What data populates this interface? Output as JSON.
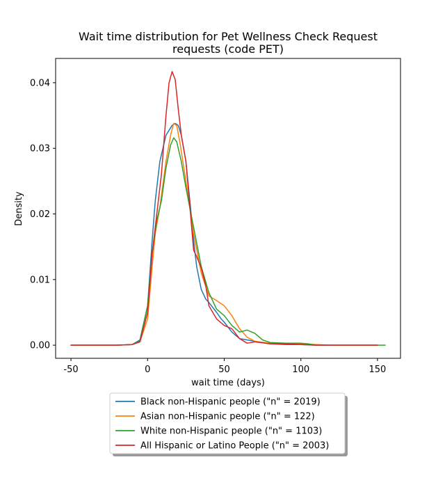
{
  "chart_data": {
    "type": "line",
    "title_lines": [
      "Wait time distribution  for Pet Wellness Check Request",
      "requests (code PET)"
    ],
    "xlabel": "wait time (days)",
    "ylabel": "Density",
    "xlim": [
      -60,
      165
    ],
    "ylim": [
      -0.002,
      0.0437
    ],
    "xticks": [
      -50,
      0,
      50,
      100,
      150
    ],
    "yticks": [
      0.0,
      0.01,
      0.02,
      0.03,
      0.04
    ],
    "ytick_labels": [
      "0.00",
      "0.01",
      "0.02",
      "0.03",
      "0.04"
    ],
    "grid": false,
    "legend_position": "below-center",
    "series": [
      {
        "name": "Black non-Hispanic people (\"n\" = 2019)",
        "color": "#1f77b4",
        "points": [
          [
            -50,
            0
          ],
          [
            -20,
            0
          ],
          [
            -10,
            0.0001
          ],
          [
            -5,
            0.0008
          ],
          [
            0,
            0.006
          ],
          [
            3,
            0.016
          ],
          [
            5,
            0.022
          ],
          [
            8,
            0.028
          ],
          [
            12,
            0.032
          ],
          [
            16,
            0.0335
          ],
          [
            18,
            0.0338
          ],
          [
            20,
            0.0335
          ],
          [
            22,
            0.032
          ],
          [
            25,
            0.028
          ],
          [
            28,
            0.021
          ],
          [
            30,
            0.016
          ],
          [
            32,
            0.012
          ],
          [
            35,
            0.0085
          ],
          [
            38,
            0.007
          ],
          [
            40,
            0.0065
          ],
          [
            45,
            0.005
          ],
          [
            48,
            0.004
          ],
          [
            50,
            0.0035
          ],
          [
            55,
            0.002
          ],
          [
            60,
            0.001
          ],
          [
            65,
            0.0008
          ],
          [
            70,
            0.0006
          ],
          [
            80,
            0.0002
          ],
          [
            90,
            0.0001
          ],
          [
            100,
            0.0001
          ],
          [
            110,
            0
          ],
          [
            150,
            0
          ]
        ]
      },
      {
        "name": "Asian non-Hispanic people (\"n\" = 122)",
        "color": "#ff7f0e",
        "points": [
          [
            -50,
            0
          ],
          [
            -20,
            0
          ],
          [
            -10,
            0.0001
          ],
          [
            -5,
            0.0005
          ],
          [
            0,
            0.004
          ],
          [
            3,
            0.012
          ],
          [
            5,
            0.017
          ],
          [
            8,
            0.021
          ],
          [
            12,
            0.028
          ],
          [
            15,
            0.032
          ],
          [
            17,
            0.0338
          ],
          [
            19,
            0.0335
          ],
          [
            21,
            0.031
          ],
          [
            25,
            0.025
          ],
          [
            30,
            0.017
          ],
          [
            35,
            0.011
          ],
          [
            40,
            0.0075
          ],
          [
            45,
            0.0068
          ],
          [
            50,
            0.006
          ],
          [
            55,
            0.0045
          ],
          [
            60,
            0.0025
          ],
          [
            65,
            0.0012
          ],
          [
            70,
            0.0006
          ],
          [
            80,
            0.0003
          ],
          [
            90,
            0.0002
          ],
          [
            100,
            0.0002
          ],
          [
            110,
            0.0001
          ],
          [
            120,
            0
          ],
          [
            150,
            0
          ]
        ]
      },
      {
        "name": "White non-Hispanic people (\"n\" = 1103)",
        "color": "#2ca02c",
        "points": [
          [
            -50,
            0
          ],
          [
            -20,
            0
          ],
          [
            -10,
            0.0001
          ],
          [
            -5,
            0.0006
          ],
          [
            0,
            0.006
          ],
          [
            3,
            0.014
          ],
          [
            6,
            0.019
          ],
          [
            9,
            0.022
          ],
          [
            12,
            0.027
          ],
          [
            15,
            0.0305
          ],
          [
            17,
            0.0316
          ],
          [
            19,
            0.031
          ],
          [
            22,
            0.028
          ],
          [
            25,
            0.024
          ],
          [
            30,
            0.018
          ],
          [
            35,
            0.012
          ],
          [
            40,
            0.008
          ],
          [
            45,
            0.0055
          ],
          [
            50,
            0.0045
          ],
          [
            55,
            0.003
          ],
          [
            60,
            0.002
          ],
          [
            65,
            0.0023
          ],
          [
            70,
            0.0018
          ],
          [
            75,
            0.0008
          ],
          [
            80,
            0.0004
          ],
          [
            90,
            0.0003
          ],
          [
            100,
            0.0003
          ],
          [
            105,
            0.0002
          ],
          [
            110,
            0
          ],
          [
            150,
            0
          ],
          [
            155,
            0
          ]
        ]
      },
      {
        "name": "All Hispanic or Latino People (\"n\" = 2003)",
        "color": "#d62728",
        "points": [
          [
            -50,
            0
          ],
          [
            -20,
            0
          ],
          [
            -10,
            0.0001
          ],
          [
            -5,
            0.0005
          ],
          [
            0,
            0.005
          ],
          [
            3,
            0.014
          ],
          [
            6,
            0.02
          ],
          [
            9,
            0.026
          ],
          [
            12,
            0.035
          ],
          [
            14,
            0.04
          ],
          [
            16,
            0.0417
          ],
          [
            18,
            0.0405
          ],
          [
            20,
            0.036
          ],
          [
            22,
            0.032
          ],
          [
            25,
            0.028
          ],
          [
            28,
            0.02
          ],
          [
            30,
            0.0145
          ],
          [
            32,
            0.0135
          ],
          [
            35,
            0.0118
          ],
          [
            38,
            0.009
          ],
          [
            40,
            0.006
          ],
          [
            45,
            0.004
          ],
          [
            50,
            0.003
          ],
          [
            55,
            0.0025
          ],
          [
            60,
            0.001
          ],
          [
            65,
            0.0003
          ],
          [
            70,
            0.0005
          ],
          [
            80,
            0.0002
          ],
          [
            90,
            0.0002
          ],
          [
            100,
            0.0001
          ],
          [
            110,
            0
          ],
          [
            150,
            0
          ]
        ]
      }
    ]
  }
}
